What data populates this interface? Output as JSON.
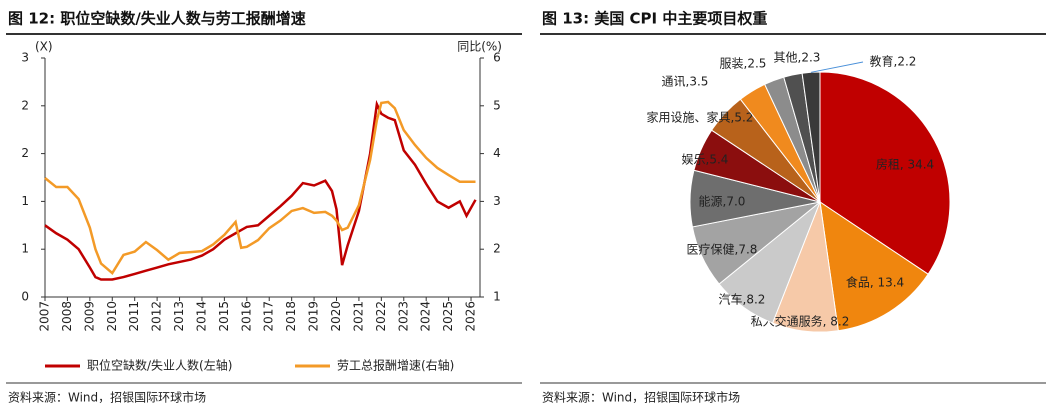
{
  "chart_data": [
    {
      "type": "line",
      "title": "图 12: 职位空缺数/失业人数与劳工报酬增速",
      "ylabel": "(X)",
      "y2label": "同比(%)",
      "source": "资料来源：Wind，招银国际环球市场",
      "x": [
        2007,
        2007.5,
        2008,
        2008.5,
        2009,
        2009.25,
        2009.5,
        2010,
        2010.5,
        2011,
        2011.5,
        2012,
        2012.5,
        2013,
        2013.5,
        2014,
        2014.5,
        2015,
        2015.5,
        2015.75,
        2016,
        2016.5,
        2017,
        2017.5,
        2018,
        2018.5,
        2019,
        2019.5,
        2019.8,
        2020,
        2020.25,
        2020.5,
        2021,
        2021.5,
        2021.8,
        2022,
        2022.3,
        2022.6,
        2023,
        2023.5,
        2024,
        2024.5,
        2025,
        2025.5,
        2025.8,
        2026.2
      ],
      "series": [
        {
          "name": "职位空缺数/失业人数(左轴)",
          "color": "#c00000",
          "values": [
            0.9,
            0.8,
            0.72,
            0.6,
            0.37,
            0.25,
            0.22,
            0.22,
            0.25,
            0.29,
            0.33,
            0.37,
            0.41,
            0.44,
            0.47,
            0.52,
            0.6,
            0.72,
            0.8,
            0.84,
            0.88,
            0.9,
            1.02,
            1.14,
            1.27,
            1.43,
            1.4,
            1.46,
            1.33,
            1.1,
            0.4,
            0.65,
            1.08,
            1.8,
            2.42,
            2.3,
            2.25,
            2.22,
            1.84,
            1.66,
            1.42,
            1.2,
            1.12,
            1.2,
            1.02,
            1.22
          ]
        },
        {
          "name": "劳工总报酬增速(右轴)",
          "color": "#f39a27",
          "axis": "y2",
          "values": [
            3.49,
            3.3,
            3.3,
            3.05,
            2.45,
            2.0,
            1.7,
            1.5,
            1.88,
            1.95,
            2.15,
            1.98,
            1.78,
            1.92,
            1.94,
            1.96,
            2.1,
            2.3,
            2.57,
            2.03,
            2.05,
            2.19,
            2.44,
            2.6,
            2.8,
            2.86,
            2.76,
            2.78,
            2.7,
            2.6,
            2.4,
            2.45,
            2.92,
            3.87,
            4.7,
            5.06,
            5.08,
            4.95,
            4.49,
            4.18,
            3.91,
            3.7,
            3.55,
            3.41,
            3.41,
            3.41
          ]
        }
      ],
      "xlim": [
        2007,
        2026.4
      ],
      "xticks": [
        2007,
        2008,
        2009,
        2010,
        2011,
        2012,
        2013,
        2014,
        2015,
        2016,
        2017,
        2018,
        2019,
        2020,
        2021,
        2022,
        2023,
        2024,
        2025,
        2026
      ],
      "ylim": [
        0,
        3
      ],
      "yticks": [
        0,
        {
          "value": 0.6,
          "label": "1"
        },
        {
          "value": 1.2,
          "label": "1"
        },
        {
          "value": 1.8,
          "label": "2"
        },
        {
          "value": 2.4,
          "label": "2"
        },
        3
      ],
      "y2lim": [
        1,
        6
      ],
      "y2ticks": [
        1,
        2,
        3,
        4,
        5,
        6
      ],
      "legend": "bottom"
    },
    {
      "type": "pie",
      "title": "图 13: 美国 CPI 中主要项目权重",
      "source": "资料来源：Wind，招银国际环球市场",
      "values": [
        34.4,
        13.4,
        8.2,
        8.2,
        7.8,
        7.0,
        5.4,
        5.2,
        3.5,
        2.5,
        2.3,
        2.2
      ],
      "value_labels": [
        "房租, 34.4",
        "食品, 13.4",
        "私人交通服务, 8.2",
        "汽车,8.2",
        "医疗保健,7.8",
        "能源,7.0",
        "娱乐,5.4",
        "家用设施、家具,5.2",
        "通讯,3.5",
        "服装,2.5",
        "其他,2.3",
        "教育,2.2"
      ],
      "colors": [
        "#c00000",
        "#f0860e",
        "#f6c9a8",
        "#cacaca",
        "#a3a3a3",
        "#6e6e6e",
        "#8b0e0e",
        "#b8621b",
        "#f08a1e",
        "#8c8c8c",
        "#505050",
        "#3a3a3a"
      ]
    }
  ]
}
